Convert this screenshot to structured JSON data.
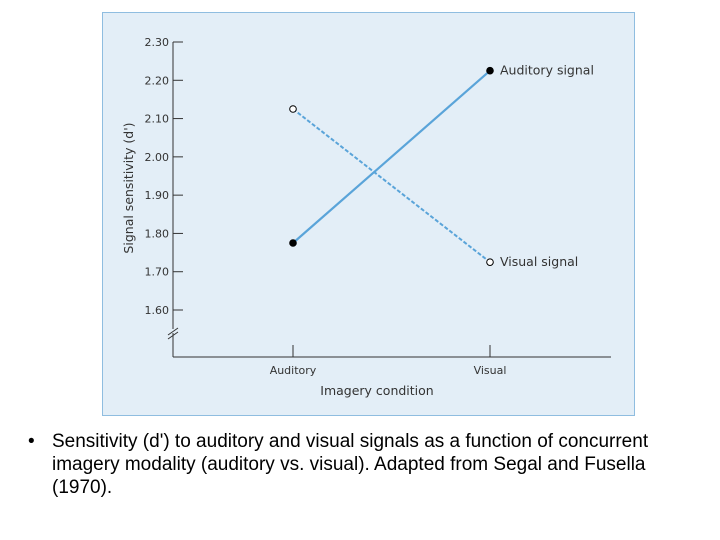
{
  "chart_data": {
    "type": "line",
    "xlabel": "Imagery condition",
    "ylabel": "Signal sensitivity (d')",
    "categories": [
      "Auditory",
      "Visual"
    ],
    "ylim": [
      1.6,
      2.3
    ],
    "yticks": [
      "1.60",
      "1.70",
      "1.80",
      "1.90",
      "2.00",
      "2.10",
      "2.20",
      "2.30"
    ],
    "axis_break": true,
    "grid": false,
    "series": [
      {
        "name": "Auditory signal",
        "values": [
          1.775,
          2.225
        ],
        "marker": "filled-circle",
        "line": "solid"
      },
      {
        "name": "Visual signal",
        "values": [
          2.125,
          1.725
        ],
        "marker": "open-circle",
        "line": "dashed"
      }
    ]
  },
  "caption": {
    "bullet": "•",
    "text": "Sensitivity (d') to auditory and visual signals as a function of concurrent imagery modality (auditory vs. visual). Adapted from Segal and Fusella (1970)."
  },
  "colors": {
    "line": "#5aa4d9",
    "panel_bg": "#e3eef7",
    "panel_border": "#8fbde0",
    "axis": "#333333"
  }
}
